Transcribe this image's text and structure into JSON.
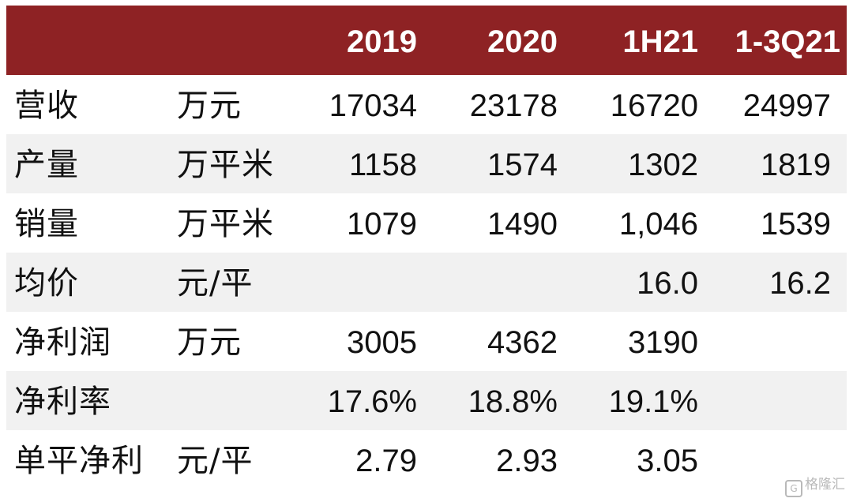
{
  "header": {
    "empty": "",
    "cols": [
      "2019",
      "2020",
      "1H21",
      "1-3Q21"
    ]
  },
  "rows": [
    {
      "name": "营收",
      "unit": "万元",
      "values": [
        "17034",
        "23178",
        "16720",
        "24997"
      ]
    },
    {
      "name": "产量",
      "unit": "万平米",
      "values": [
        "1158",
        "1574",
        "1302",
        "1819"
      ]
    },
    {
      "name": "销量",
      "unit": "万平米",
      "values": [
        "1079",
        "1490",
        "1,046",
        "1539"
      ]
    },
    {
      "name": "均价",
      "unit": "元/平",
      "values": [
        "",
        "",
        "16.0",
        "16.2"
      ]
    },
    {
      "name": "净利润",
      "unit": "万元",
      "values": [
        "3005",
        "4362",
        "3190",
        ""
      ]
    },
    {
      "name": "净利率",
      "unit": "",
      "values": [
        "17.6%",
        "18.8%",
        "19.1%",
        ""
      ]
    },
    {
      "name": "单平净利",
      "unit": "元/平",
      "values": [
        "2.79",
        "2.93",
        "3.05",
        ""
      ]
    }
  ],
  "watermark": {
    "icon": "G",
    "text": "格隆汇"
  },
  "colors": {
    "header_bg": "#8e2224",
    "alt_row_bg": "#f1f1f1"
  }
}
